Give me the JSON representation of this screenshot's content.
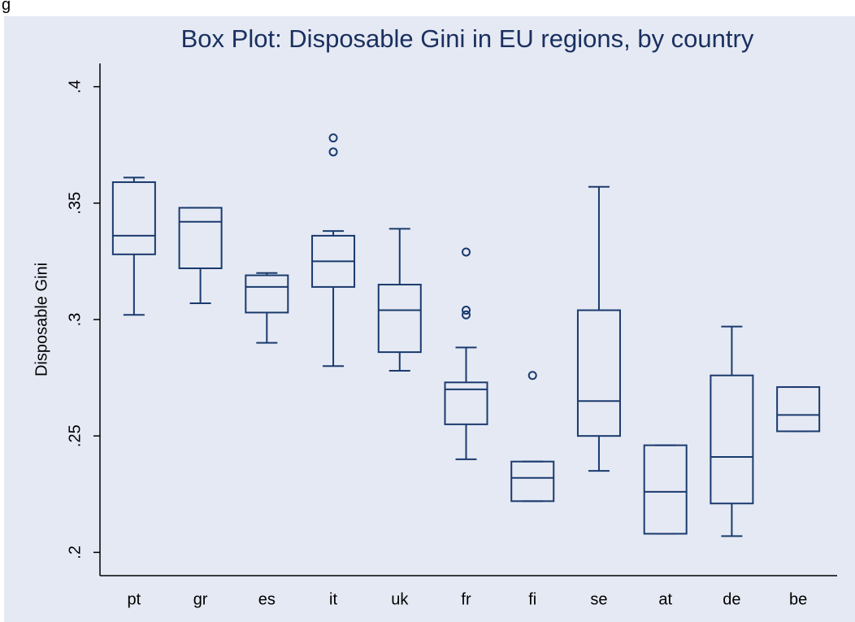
{
  "caption": "g",
  "chart_data": {
    "type": "box",
    "title": "Box Plot: Disposable Gini in EU regions, by country",
    "y_label": "Disposable Gini",
    "color": "#1a3a6e",
    "categories": [
      "pt",
      "gr",
      "es",
      "it",
      "uk",
      "fr",
      "fi",
      "se",
      "at",
      "de",
      "be"
    ],
    "min": [
      0.302,
      0.307,
      0.29,
      0.28,
      0.278,
      0.24,
      0.222,
      0.235,
      0.208,
      0.207,
      0.252
    ],
    "q1": [
      0.328,
      0.322,
      0.303,
      0.314,
      0.286,
      0.255,
      0.222,
      0.25,
      0.208,
      0.221,
      0.252
    ],
    "median": [
      0.336,
      0.342,
      0.314,
      0.325,
      0.304,
      0.27,
      0.232,
      0.265,
      0.226,
      0.241,
      0.259
    ],
    "q3": [
      0.359,
      0.348,
      0.319,
      0.336,
      0.315,
      0.273,
      0.239,
      0.304,
      0.246,
      0.276,
      0.271
    ],
    "max": [
      0.361,
      0.348,
      0.32,
      0.338,
      0.339,
      0.288,
      0.239,
      0.357,
      0.246,
      0.297,
      0.271
    ],
    "outliers": [
      [],
      [],
      [],
      [
        0.378,
        0.372
      ],
      [],
      [
        0.329,
        0.304,
        0.302
      ],
      [
        0.276
      ],
      [],
      [],
      [],
      []
    ],
    "ylim": [
      0.19,
      0.41
    ],
    "yticks": [
      {
        "value": 0.2,
        "label": ".2"
      },
      {
        "value": 0.25,
        "label": ".25"
      },
      {
        "value": 0.3,
        "label": ".3"
      },
      {
        "value": 0.35,
        "label": ".35"
      },
      {
        "value": 0.4,
        "label": ".4"
      }
    ]
  }
}
